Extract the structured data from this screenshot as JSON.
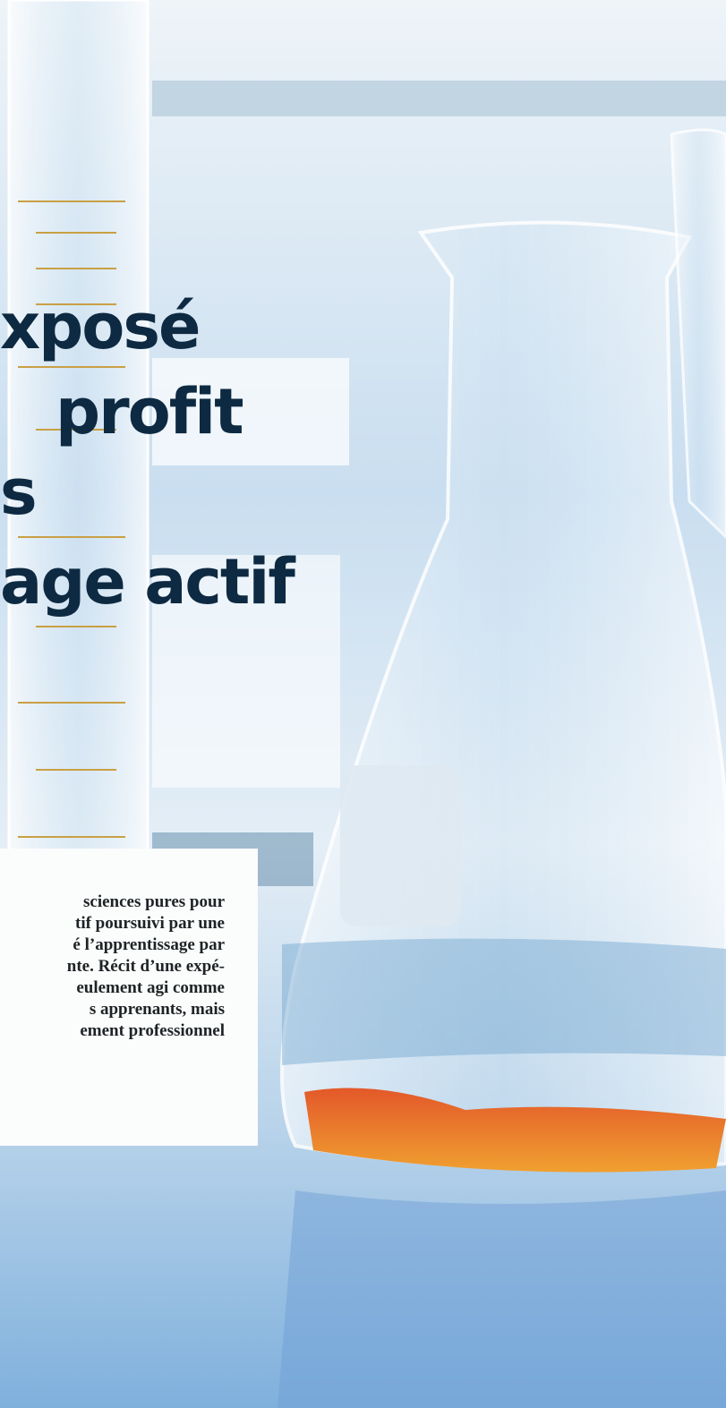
{
  "title_lines": [
    "xposé",
    "profit",
    "s",
    "age actif"
  ],
  "body_lines": [
    "sciences pures pour",
    "tif poursuivi par une",
    "é l’apprentissage par",
    "nte. Récit d’une expé-",
    "eulement agi comme",
    "s apprenants, mais",
    "ement professionnel"
  ]
}
